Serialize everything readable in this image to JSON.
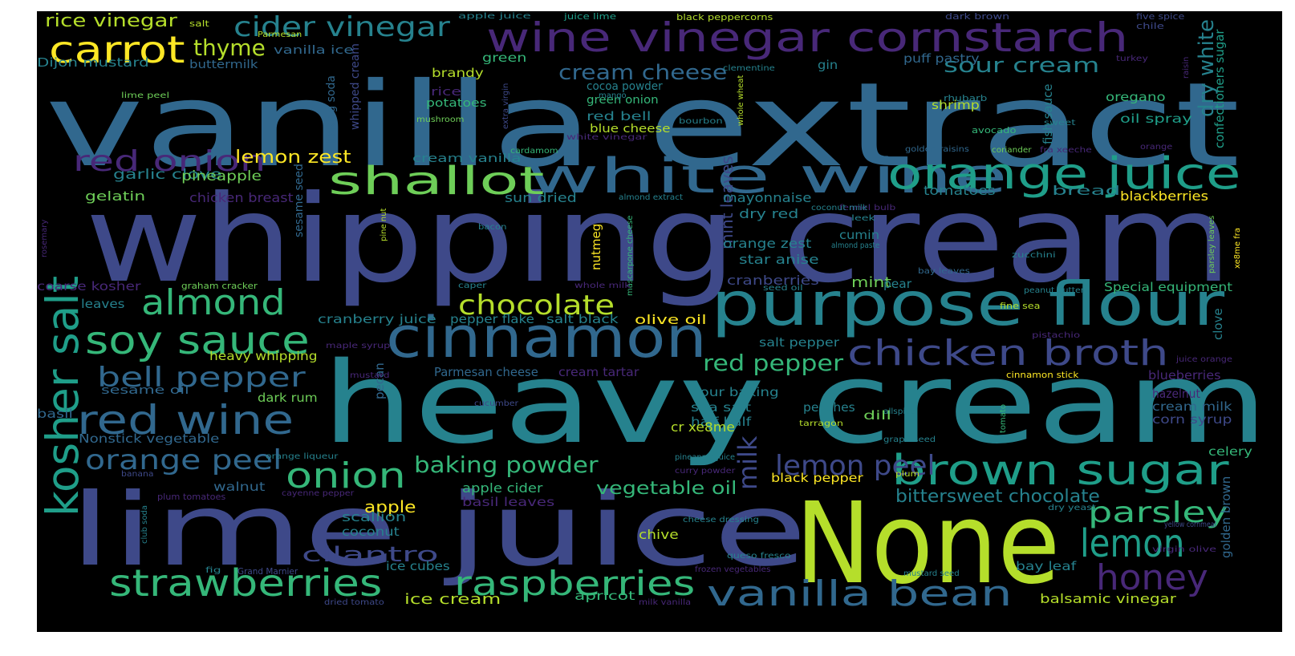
{
  "palette": {
    "violet": "#482878",
    "indigo": "#3e4989",
    "blue": "#31688e",
    "teal": "#26828e",
    "aqua": "#1f9e89",
    "green": "#35b779",
    "lime": "#6ece58",
    "yellowgreen": "#b5de2b",
    "yellow": "#fde725"
  },
  "words": [
    {
      "text": "vanilla extract",
      "color": "blue"
    },
    {
      "text": "whipping cream",
      "color": "indigo"
    },
    {
      "text": "heavy cream",
      "color": "teal"
    },
    {
      "text": "lime juice",
      "color": "indigo"
    },
    {
      "text": "None",
      "color": "yellowgreen"
    },
    {
      "text": "wine vinegar cornstarch",
      "color": "violet"
    },
    {
      "text": "purpose flour",
      "color": "teal"
    },
    {
      "text": "cinnamon",
      "color": "blue"
    },
    {
      "text": "white wine",
      "color": "blue"
    },
    {
      "text": "orange juice",
      "color": "aqua"
    },
    {
      "text": "kosher salt",
      "color": "aqua"
    },
    {
      "text": "shallot",
      "color": "lime"
    },
    {
      "text": "brown sugar",
      "color": "aqua"
    },
    {
      "text": "chicken broth",
      "color": "indigo"
    },
    {
      "text": "soy sauce",
      "color": "green"
    },
    {
      "text": "red wine",
      "color": "blue"
    },
    {
      "text": "vanilla bean",
      "color": "blue"
    },
    {
      "text": "strawberries",
      "color": "green"
    },
    {
      "text": "raspberries",
      "color": "green"
    },
    {
      "text": "carrot",
      "color": "yellow"
    },
    {
      "text": "almond",
      "color": "green"
    },
    {
      "text": "onion",
      "color": "green"
    },
    {
      "text": "lemon",
      "color": "aqua"
    },
    {
      "text": "honey",
      "color": "violet"
    },
    {
      "text": "red onion",
      "color": "violet"
    },
    {
      "text": "chocolate",
      "color": "yellowgreen"
    },
    {
      "text": "cider vinegar",
      "color": "teal"
    },
    {
      "text": "bell pepper",
      "color": "blue"
    },
    {
      "text": "orange peel",
      "color": "blue"
    },
    {
      "text": "milk",
      "color": "indigo"
    },
    {
      "text": "parsley",
      "color": "green"
    },
    {
      "text": "lemon peel",
      "color": "indigo"
    },
    {
      "text": "baking powder",
      "color": "green"
    },
    {
      "text": "thyme",
      "color": "yellowgreen"
    },
    {
      "text": "cilantro",
      "color": "indigo"
    },
    {
      "text": "red pepper",
      "color": "green"
    },
    {
      "text": "bittersweet chocolate",
      "color": "teal"
    },
    {
      "text": "sour cream",
      "color": "teal"
    },
    {
      "text": "cream cheese",
      "color": "blue"
    },
    {
      "text": "vegetable oil",
      "color": "green"
    },
    {
      "text": "dry white",
      "color": "teal"
    },
    {
      "text": "lemon zest",
      "color": "yellow"
    },
    {
      "text": "mint leaves",
      "color": "indigo"
    },
    {
      "text": "rice vinegar",
      "color": "yellowgreen"
    },
    {
      "text": "apple",
      "color": "yellow"
    },
    {
      "text": "ice cream",
      "color": "yellowgreen"
    },
    {
      "text": "balsamic vinegar",
      "color": "yellowgreen"
    },
    {
      "text": "garlic clove",
      "color": "teal"
    },
    {
      "text": "pineapple",
      "color": "lime"
    },
    {
      "text": "gelatin",
      "color": "lime"
    },
    {
      "text": "chicken breast",
      "color": "violet"
    },
    {
      "text": "sun dried",
      "color": "teal"
    },
    {
      "text": "tomatoes",
      "color": "teal"
    },
    {
      "text": "bread",
      "color": "teal"
    },
    {
      "text": "blackberries",
      "color": "yellow"
    },
    {
      "text": "mayonnaise",
      "color": "teal"
    },
    {
      "text": "dry red",
      "color": "teal"
    },
    {
      "text": "orange zest",
      "color": "teal"
    },
    {
      "text": "cumin",
      "color": "teal"
    },
    {
      "text": "star anise",
      "color": "teal"
    },
    {
      "text": "cranberries",
      "color": "indigo"
    },
    {
      "text": "mint",
      "color": "lime"
    },
    {
      "text": "pear",
      "color": "teal"
    },
    {
      "text": "Special equipment",
      "color": "green"
    },
    {
      "text": "cranberry juice",
      "color": "teal"
    },
    {
      "text": "pepper flake",
      "color": "teal"
    },
    {
      "text": "salt black",
      "color": "teal"
    },
    {
      "text": "olive oil",
      "color": "yellow"
    },
    {
      "text": "salt pepper",
      "color": "teal"
    },
    {
      "text": "heavy whipping",
      "color": "yellowgreen"
    },
    {
      "text": "sesame oil",
      "color": "blue"
    },
    {
      "text": "dark rum",
      "color": "lime"
    },
    {
      "text": "Parmesan cheese",
      "color": "blue"
    },
    {
      "text": "cream tartar",
      "color": "violet"
    },
    {
      "text": "flour baking",
      "color": "teal"
    },
    {
      "text": "sea salt",
      "color": "teal"
    },
    {
      "text": "half half",
      "color": "teal"
    },
    {
      "text": "peaches",
      "color": "teal"
    },
    {
      "text": "dill",
      "color": "lime"
    },
    {
      "text": "cr xe8me",
      "color": "yellowgreen"
    },
    {
      "text": "celery",
      "color": "green"
    },
    {
      "text": "corn syrup",
      "color": "indigo"
    },
    {
      "text": "cream milk",
      "color": "blue"
    },
    {
      "text": "hazelnut",
      "color": "violet"
    },
    {
      "text": "blueberries",
      "color": "violet"
    },
    {
      "text": "Nonstick vegetable",
      "color": "blue"
    },
    {
      "text": "basil",
      "color": "blue"
    },
    {
      "text": "walnut",
      "color": "blue"
    },
    {
      "text": "apple cider",
      "color": "green"
    },
    {
      "text": "basil leaves",
      "color": "violet"
    },
    {
      "text": "black pepper",
      "color": "yellow"
    },
    {
      "text": "scallion",
      "color": "teal"
    },
    {
      "text": "coconut",
      "color": "teal"
    },
    {
      "text": "chive",
      "color": "yellowgreen"
    },
    {
      "text": "ice cubes",
      "color": "teal"
    },
    {
      "text": "apricot",
      "color": "green"
    },
    {
      "text": "bay leaf",
      "color": "teal"
    },
    {
      "text": "buttermilk",
      "color": "blue"
    },
    {
      "text": "Dijon mustard",
      "color": "teal"
    },
    {
      "text": "vanilla ice",
      "color": "blue"
    },
    {
      "text": "brandy",
      "color": "yellowgreen"
    },
    {
      "text": "cocoa powder",
      "color": "teal"
    },
    {
      "text": "green onion",
      "color": "green"
    },
    {
      "text": "red bell",
      "color": "teal"
    },
    {
      "text": "blue cheese",
      "color": "yellowgreen"
    },
    {
      "text": "potatoes",
      "color": "green"
    },
    {
      "text": "rice",
      "color": "violet"
    },
    {
      "text": "cream vanilla",
      "color": "teal"
    },
    {
      "text": "shrimp",
      "color": "yellowgreen"
    },
    {
      "text": "oregano",
      "color": "green"
    },
    {
      "text": "oil spray",
      "color": "aqua"
    },
    {
      "text": "puff pastry",
      "color": "blue"
    },
    {
      "text": "gin",
      "color": "teal"
    },
    {
      "text": "green",
      "color": "green"
    },
    {
      "text": "confectioners sugar",
      "color": "aqua"
    },
    {
      "text": "fish sauce",
      "color": "teal"
    },
    {
      "text": "whipped cream",
      "color": "indigo"
    },
    {
      "text": "baking soda",
      "color": "blue"
    },
    {
      "text": "sesame seed",
      "color": "blue"
    },
    {
      "text": "nutmeg",
      "color": "yellow"
    },
    {
      "text": "pecan",
      "color": "blue"
    },
    {
      "text": "clove",
      "color": "teal"
    },
    {
      "text": "golden brown",
      "color": "blue"
    },
    {
      "text": "leaves",
      "color": "teal"
    },
    {
      "text": "coarse kosher",
      "color": "violet"
    },
    {
      "text": "graham cracker",
      "color": "lime"
    },
    {
      "text": "salt",
      "color": "yellowgreen"
    },
    {
      "text": "apple juice",
      "color": "teal"
    },
    {
      "text": "juice lime",
      "color": "aqua"
    },
    {
      "text": "black peppercorns",
      "color": "yellowgreen"
    },
    {
      "text": "dark brown",
      "color": "indigo"
    },
    {
      "text": "five spice",
      "color": "indigo"
    },
    {
      "text": "chile",
      "color": "indigo"
    },
    {
      "text": "Parmesan",
      "color": "yellowgreen"
    },
    {
      "text": "lime peel",
      "color": "lime"
    },
    {
      "text": "mushroom",
      "color": "lime"
    },
    {
      "text": "mango",
      "color": "teal"
    },
    {
      "text": "clementine",
      "color": "teal"
    },
    {
      "text": "rhubarb",
      "color": "teal"
    },
    {
      "text": "turkey",
      "color": "violet"
    },
    {
      "text": "raisin",
      "color": "violet"
    },
    {
      "text": "extra virgin",
      "color": "indigo"
    },
    {
      "text": "bourbon",
      "color": "teal"
    },
    {
      "text": "whole wheat",
      "color": "yellowgreen"
    },
    {
      "text": "avocado",
      "color": "green"
    },
    {
      "text": "sweet",
      "color": "teal"
    },
    {
      "text": "white vinegar",
      "color": "violet"
    },
    {
      "text": "cardamom",
      "color": "green"
    },
    {
      "text": "golden raisins",
      "color": "blue"
    },
    {
      "text": "coriander",
      "color": "lime"
    },
    {
      "text": "fra xeeche",
      "color": "violet"
    },
    {
      "text": "orange",
      "color": "violet"
    },
    {
      "text": "almond extract",
      "color": "teal"
    },
    {
      "text": "fennel bulb",
      "color": "violet"
    },
    {
      "text": "coconut milk",
      "color": "teal"
    },
    {
      "text": "leek",
      "color": "teal"
    },
    {
      "text": "almond paste",
      "color": "teal"
    },
    {
      "text": "bacon",
      "color": "teal"
    },
    {
      "text": "pine nut",
      "color": "yellowgreen"
    },
    {
      "text": "mascarpone cheese",
      "color": "green"
    },
    {
      "text": "zucchini",
      "color": "teal"
    },
    {
      "text": "bay leaves",
      "color": "blue"
    },
    {
      "text": "parsley leaves",
      "color": "lime"
    },
    {
      "text": "xe8me fra",
      "color": "yellow"
    },
    {
      "text": "rosemary",
      "color": "violet"
    },
    {
      "text": "caper",
      "color": "teal"
    },
    {
      "text": "whole milk",
      "color": "violet"
    },
    {
      "text": "seed oil",
      "color": "teal"
    },
    {
      "text": "peanut butter",
      "color": "teal"
    },
    {
      "text": "fine sea",
      "color": "yellowgreen"
    },
    {
      "text": "maple syrup",
      "color": "violet"
    },
    {
      "text": "pistachio",
      "color": "violet"
    },
    {
      "text": "juice orange",
      "color": "violet"
    },
    {
      "text": "mustard",
      "color": "violet"
    },
    {
      "text": "cinnamon stick",
      "color": "yellow"
    },
    {
      "text": "cucumber",
      "color": "indigo"
    },
    {
      "text": "allspice",
      "color": "teal"
    },
    {
      "text": "tarragon",
      "color": "yellowgreen"
    },
    {
      "text": "grape seed",
      "color": "teal"
    },
    {
      "text": "tomato",
      "color": "green"
    },
    {
      "text": "orange liqueur",
      "color": "teal"
    },
    {
      "text": "pineapple juice",
      "color": "teal"
    },
    {
      "text": "curry powder",
      "color": "violet"
    },
    {
      "text": "plum",
      "color": "yellowgreen"
    },
    {
      "text": "banana",
      "color": "indigo"
    },
    {
      "text": "cayenne pepper",
      "color": "violet"
    },
    {
      "text": "plum tomatoes",
      "color": "violet"
    },
    {
      "text": "dry yeast",
      "color": "teal"
    },
    {
      "text": "yellow cornmeal",
      "color": "indigo"
    },
    {
      "text": "club soda",
      "color": "teal"
    },
    {
      "text": "cheese dressing",
      "color": "teal"
    },
    {
      "text": "queso fresco",
      "color": "teal"
    },
    {
      "text": "virgin olive",
      "color": "violet"
    },
    {
      "text": "fig",
      "color": "teal"
    },
    {
      "text": "Grand Marnier",
      "color": "indigo"
    },
    {
      "text": "frozen vegetables",
      "color": "violet"
    },
    {
      "text": "mustard seed",
      "color": "teal"
    },
    {
      "text": "dried tomato",
      "color": "indigo"
    },
    {
      "text": "milk vanilla",
      "color": "violet"
    }
  ]
}
